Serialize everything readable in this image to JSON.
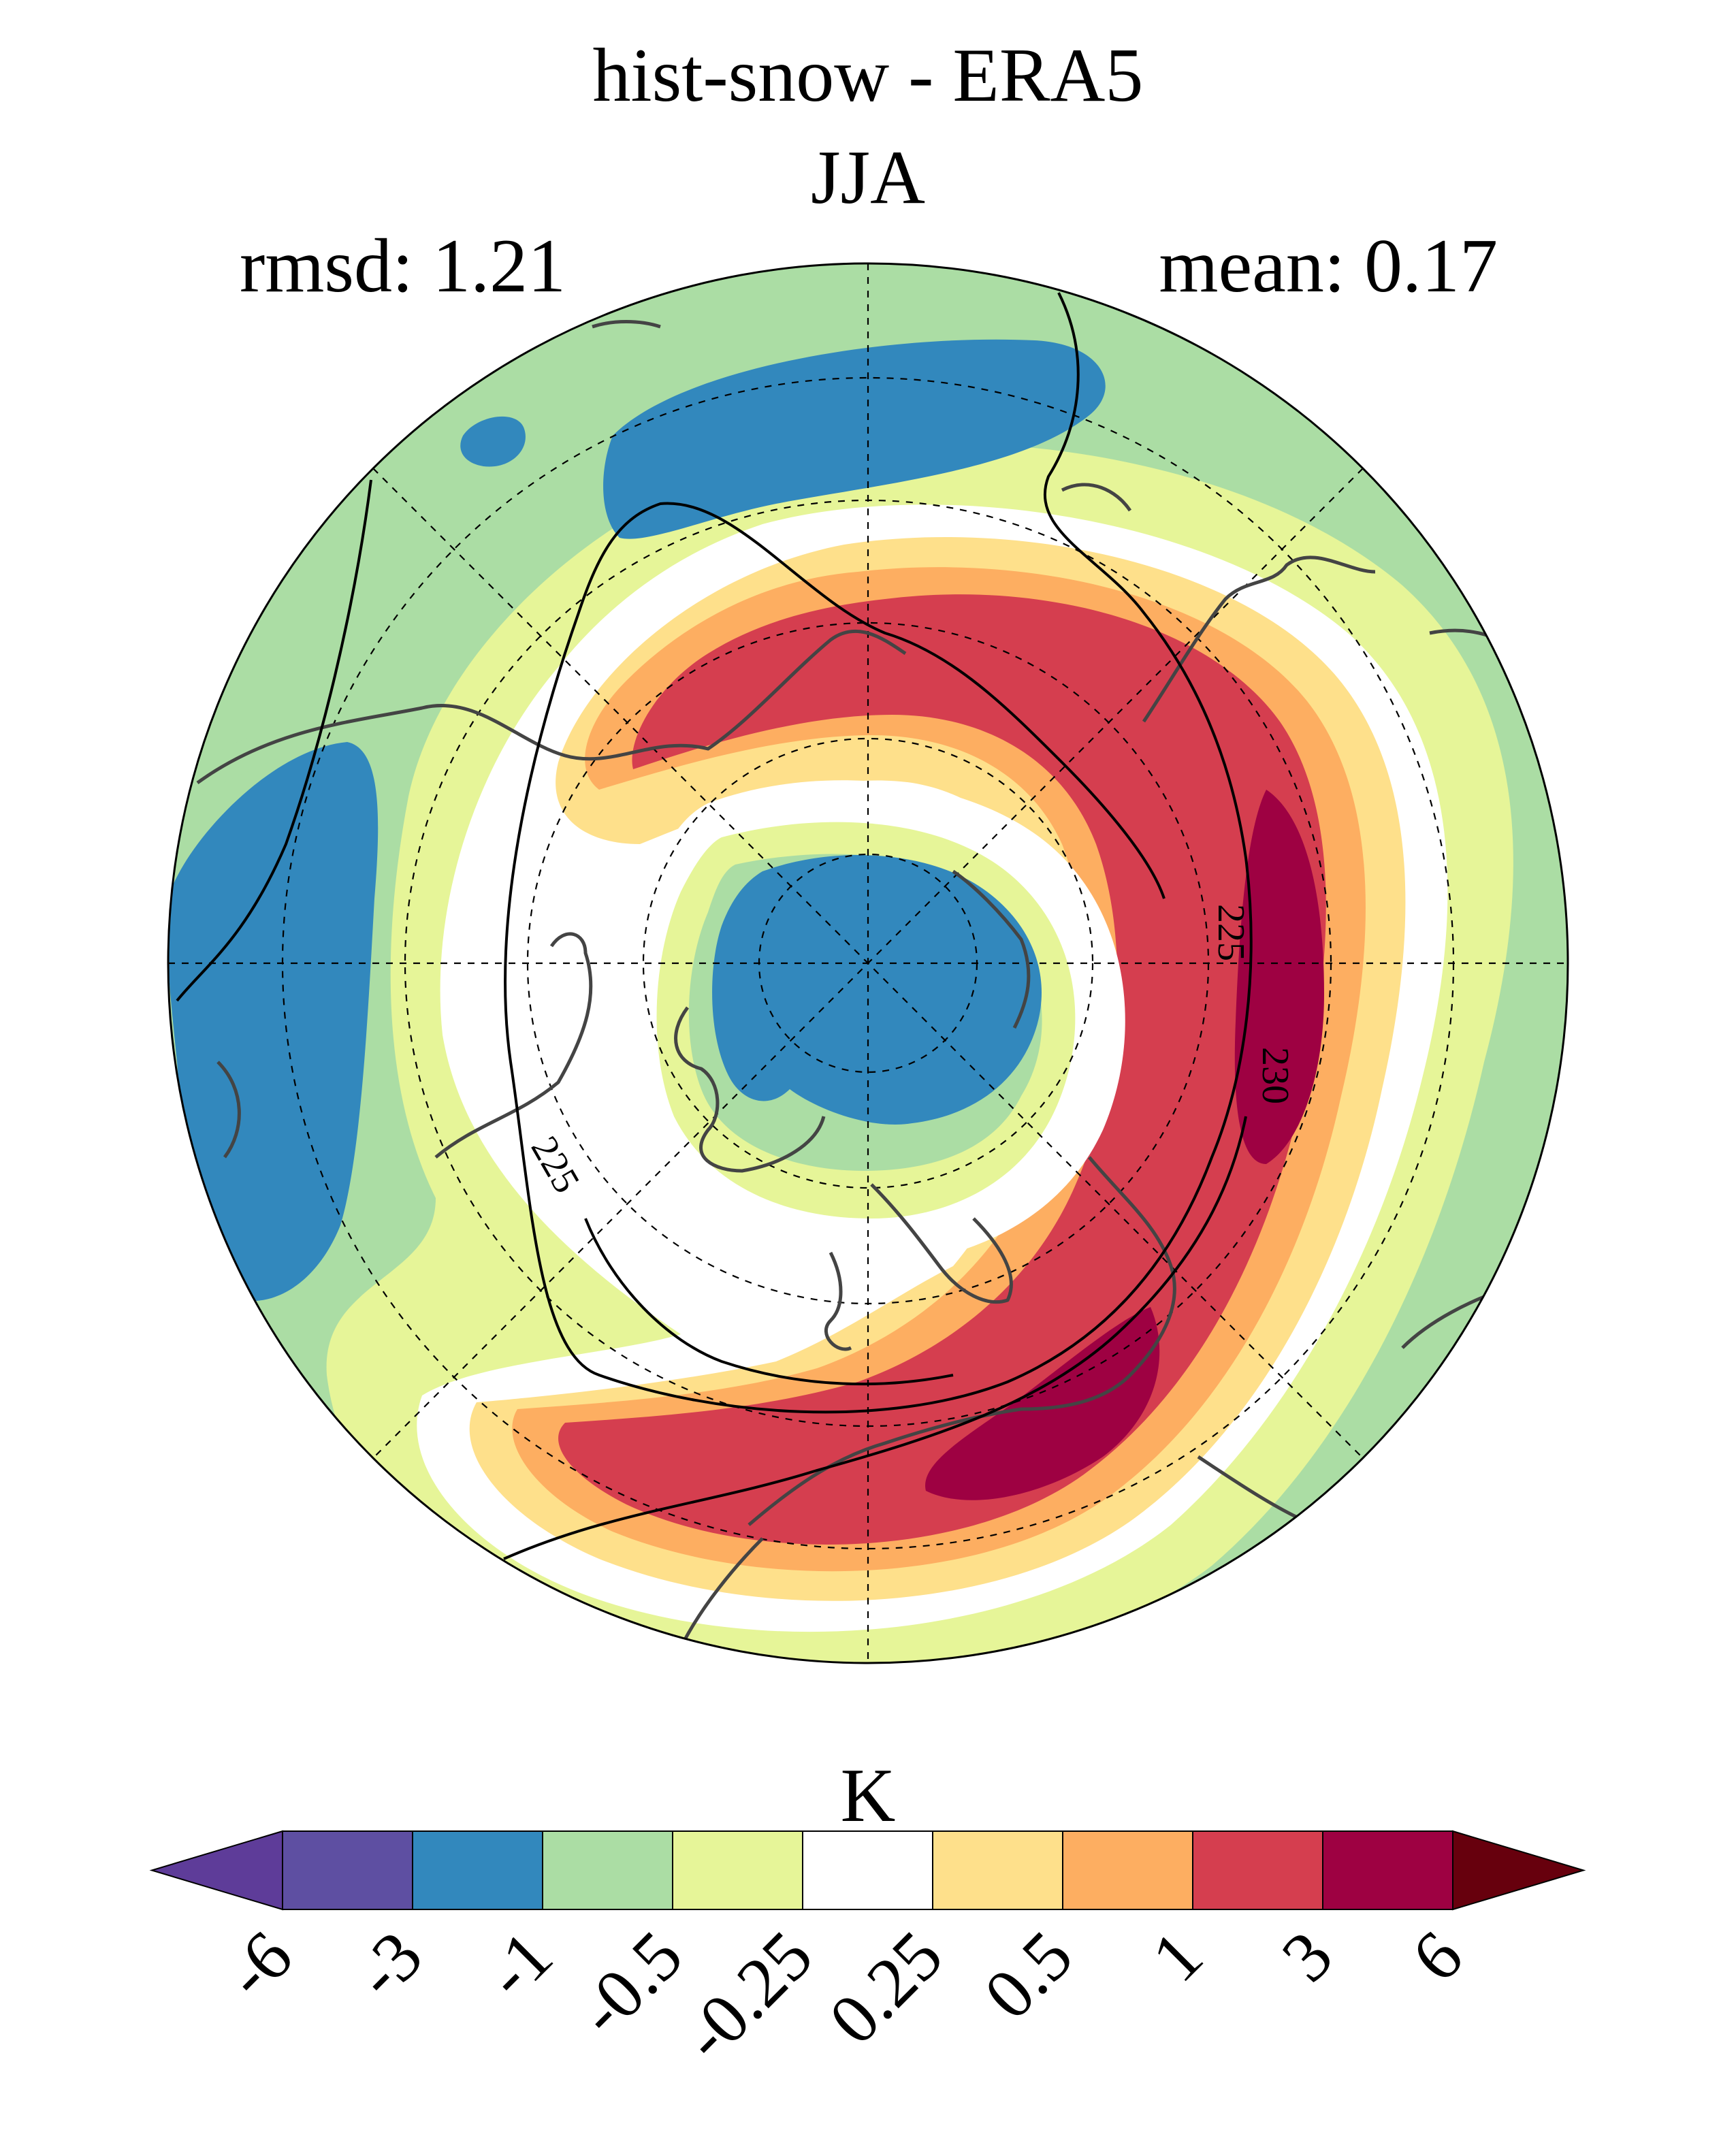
{
  "header": {
    "title": "hist-snow - ERA5",
    "season": "JJA",
    "rmsd_label": "rmsd: 1.21",
    "mean_label": "mean: 0.17"
  },
  "map": {
    "projection": "north-polar-stereographic",
    "contour_labels": [
      "225",
      "230",
      "225"
    ]
  },
  "colorbar": {
    "unit": "K",
    "ticks": [
      "-6",
      "-3",
      "-1",
      "-0.5",
      "-0.25",
      "0.25",
      "0.5",
      "1",
      "3",
      "6"
    ],
    "colors": [
      "#5e3c99",
      "#5e4fa2",
      "#3288bd",
      "#abdda4",
      "#e6f598",
      "#ffffff",
      "#fee08b",
      "#fdae61",
      "#d53e4f",
      "#9e0142",
      "#67000d"
    ]
  },
  "palette": {
    "ocean_green": "#abdda4",
    "pale_yellow": "#e6f598",
    "white": "#ffffff",
    "yellow": "#fee08b",
    "orange": "#fdae61",
    "red": "#d53e4f",
    "dark_red": "#9e0142",
    "blue": "#3288bd",
    "coast": "#444444"
  }
}
